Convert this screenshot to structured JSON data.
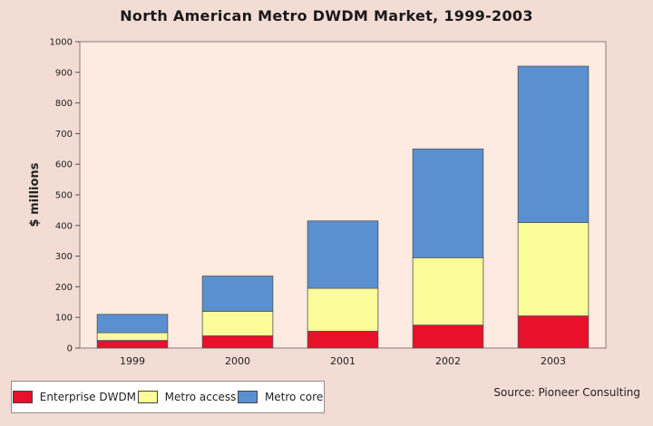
{
  "chart_data": {
    "type": "bar",
    "stacked": true,
    "title": "North American Metro DWDM Market, 1999-2003",
    "xlabel": "",
    "ylabel": "$ millions",
    "ylim": [
      0,
      1000
    ],
    "yticks": [
      0,
      100,
      200,
      300,
      400,
      500,
      600,
      700,
      800,
      900,
      1000
    ],
    "categories": [
      "1999",
      "2000",
      "2001",
      "2002",
      "2003"
    ],
    "series": [
      {
        "name": "Enterprise DWDM",
        "color": "#e8102a",
        "values": [
          25,
          40,
          55,
          75,
          105
        ]
      },
      {
        "name": "Metro access",
        "color": "#fbfb9a",
        "values": [
          25,
          80,
          140,
          220,
          305
        ]
      },
      {
        "name": "Metro core",
        "color": "#5a8fd0",
        "values": [
          60,
          115,
          220,
          355,
          510
        ]
      }
    ],
    "legend_position": "bottom-left",
    "source": "Source: Pioneer Consulting",
    "plot_background": "#fdeae0",
    "grid": false
  }
}
